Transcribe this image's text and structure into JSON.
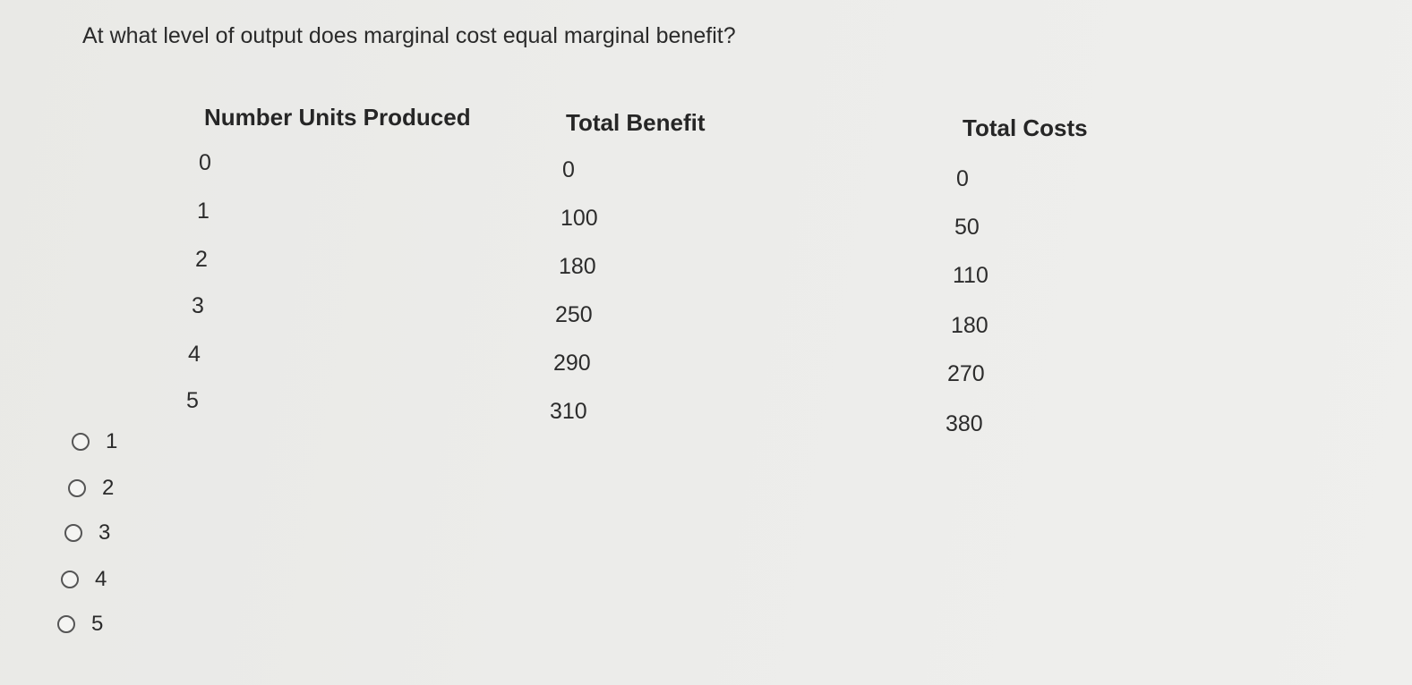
{
  "question": "At what level of output does marginal cost equal marginal benefit?",
  "table": {
    "headers": [
      "Number Units Produced",
      "Total Benefit",
      "Total Costs"
    ],
    "units": [
      "0",
      "1",
      "2",
      "3",
      "4",
      "5"
    ],
    "total_benefit": [
      "0",
      "100",
      "180",
      "250",
      "290",
      "310"
    ],
    "total_costs": [
      "0",
      "50",
      "110",
      "180",
      "270",
      "380"
    ]
  },
  "options": [
    "1",
    "2",
    "3",
    "4",
    "5"
  ]
}
